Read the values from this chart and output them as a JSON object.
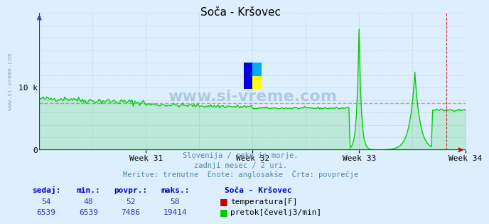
{
  "title": "Soča - Kršovec",
  "background_color": "#ddeeff",
  "plot_bg_color": "#ddeeff",
  "grid_color": "#aabbcc",
  "xlim": [
    0,
    336
  ],
  "ylim": [
    0,
    22000
  ],
  "avg_flow": 7486,
  "flow_color": "#00cc00",
  "temp_color": "#cc0000",
  "avg_line_color": "#cc9999",
  "avg_line_style": "--",
  "xaxis_color": "#cc0000",
  "yaxis_color": "#3333aa",
  "watermark_color": "#5588aa",
  "watermark_text": "www.si-vreme.com",
  "side_watermark": "www.si-vreme.com",
  "subtitle1": "Slovenija / reke in morje.",
  "subtitle2": "zadnji mesec / 2 uri.",
  "subtitle3": "Meritve: trenutne  Enote: anglosakše  Črta: povprečje",
  "label_sedaj": "sedaj:",
  "label_min": "min.:",
  "label_povpr": "povpr.:",
  "label_maks": "maks.:",
  "station_name": "Soča - Kršovec",
  "temp_sedaj": 54,
  "temp_min": 48,
  "temp_avg": 52,
  "temp_max": 58,
  "flow_sedaj": 6539,
  "flow_min": 6539,
  "flow_avg": 7486,
  "flow_max": 19414,
  "temp_label": "temperatura[F]",
  "flow_label": "pretok[čevelj3/min]",
  "week_ticks": [
    84,
    168,
    252,
    336
  ],
  "week_labels": [
    "Week 31",
    "Week 32",
    "Week 33",
    "Week 34"
  ],
  "peak1_x": 252,
  "peak1_y": 19414,
  "peak2_x": 296,
  "peak2_y": 12500,
  "vline_x": 321
}
